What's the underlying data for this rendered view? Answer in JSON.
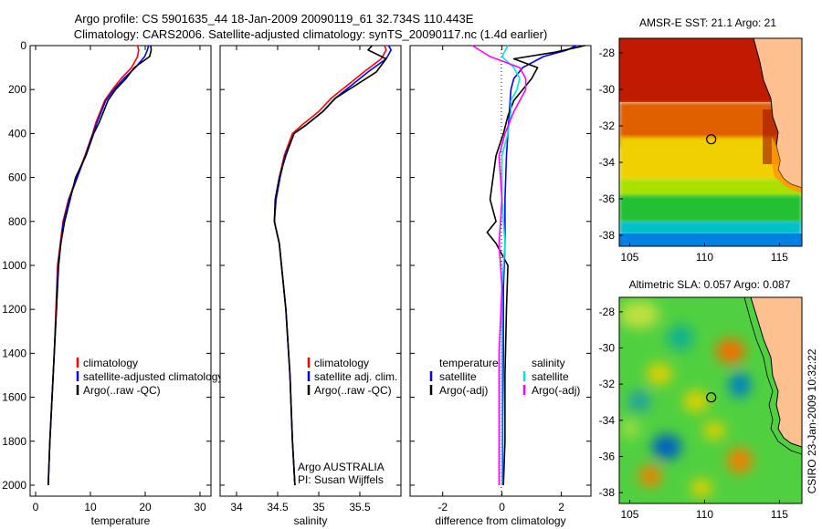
{
  "header": {
    "line1": "Argo profile: CS 5901635_44 18-Jan-2009 20090119_61 32.734S 110.443E",
    "line2": "Climatology: CARS2006. Satellite-adjusted climatology: synTS_20090117.nc (1.4d earlier)"
  },
  "side_label": "CSIRO 23-Jan-2009 10:32:22",
  "colors": {
    "climatology": "#ff0000",
    "satellite": "#0000ff",
    "argo": "#000000",
    "satellite_temp_diff": "#00e5e5",
    "argo_temp_diff": "#ff00ff"
  },
  "chart_data": [
    {
      "id": "temperature",
      "type": "line",
      "xlabel": "temperature",
      "ylabel": "",
      "xlim": [
        -1,
        32
      ],
      "ylim": [
        2050,
        0
      ],
      "y_reversed": true,
      "xticks": [
        0,
        10,
        20,
        30
      ],
      "yticks": [
        0,
        200,
        400,
        600,
        800,
        1000,
        1200,
        1400,
        1600,
        1800,
        2000
      ],
      "legend": [
        "climatology",
        "satellite-adjusted climatology",
        "Argo(..raw -QC)"
      ],
      "series": [
        {
          "name": "climatology",
          "color": "#ff0000",
          "x": [
            18.6,
            18.8,
            18.6,
            17.5,
            15.6,
            14.0,
            12.6,
            11.8,
            11.0,
            10.4,
            9.0,
            7.5,
            6.0,
            5.0,
            4.5,
            4.0,
            3.7,
            3.4,
            3.0,
            2.6,
            2.3
          ],
          "y": [
            0,
            20,
            50,
            100,
            150,
            200,
            250,
            300,
            350,
            400,
            500,
            600,
            700,
            800,
            900,
            1000,
            1200,
            1400,
            1600,
            1800,
            2000
          ]
        },
        {
          "name": "satellite",
          "color": "#0000ff",
          "x": [
            20.6,
            20.4,
            19.9,
            18.2,
            16.1,
            14.3,
            12.8,
            12.0,
            11.2,
            10.5,
            9.1,
            7.6,
            6.1,
            5.1,
            4.6,
            4.1,
            3.8,
            3.4,
            3.0,
            2.6,
            2.3
          ],
          "y": [
            0,
            20,
            50,
            100,
            150,
            200,
            250,
            300,
            350,
            400,
            500,
            600,
            700,
            800,
            900,
            1000,
            1200,
            1400,
            1600,
            1800,
            2000
          ]
        },
        {
          "name": "Argo(..raw -QC)",
          "color": "#000000",
          "x": [
            21.0,
            21.1,
            20.8,
            18.0,
            16.5,
            14.6,
            13.2,
            12.4,
            11.6,
            10.6,
            9.2,
            7.3,
            6.3,
            5.3,
            4.6,
            4.2,
            3.8,
            3.4,
            3.0,
            2.6,
            2.3
          ],
          "y": [
            0,
            20,
            50,
            100,
            150,
            200,
            250,
            300,
            350,
            400,
            500,
            600,
            700,
            800,
            900,
            1000,
            1200,
            1400,
            1600,
            1800,
            2000
          ]
        }
      ]
    },
    {
      "id": "salinity",
      "type": "line",
      "xlabel": "salinity",
      "ylabel": "",
      "xlim": [
        33.8,
        36.0
      ],
      "ylim": [
        2050,
        0
      ],
      "y_reversed": true,
      "xticks": [
        34,
        34.5,
        35,
        35.5
      ],
      "yticks": [
        0,
        200,
        400,
        600,
        800,
        1000,
        1200,
        1400,
        1600,
        1800,
        2000
      ],
      "legend": [
        "climatology",
        "satellite adj. clim.",
        "Argo(..raw -QC)"
      ],
      "annotation": [
        "Argo AUSTRALIA",
        "PI: Susan Wijffels"
      ],
      "series": [
        {
          "name": "climatology",
          "color": "#ff0000",
          "x": [
            35.8,
            35.82,
            35.76,
            35.55,
            35.35,
            35.15,
            35.0,
            34.8,
            34.68,
            34.58,
            34.52,
            34.48,
            34.46,
            34.52,
            34.6,
            34.65,
            34.68,
            34.71
          ],
          "y": [
            0,
            20,
            60,
            120,
            180,
            240,
            300,
            360,
            400,
            500,
            600,
            700,
            800,
            900,
            1200,
            1500,
            1800,
            2000
          ]
        },
        {
          "name": "satellite",
          "color": "#0000ff",
          "x": [
            35.85,
            35.88,
            35.82,
            35.6,
            35.4,
            35.2,
            35.05,
            34.85,
            34.7,
            34.59,
            34.53,
            34.48,
            34.46,
            34.52,
            34.6,
            34.65,
            34.68,
            34.71
          ],
          "y": [
            0,
            20,
            60,
            120,
            180,
            240,
            300,
            360,
            400,
            500,
            600,
            700,
            800,
            900,
            1200,
            1500,
            1800,
            2000
          ]
        },
        {
          "name": "Argo(..raw -QC)",
          "color": "#000000",
          "x": [
            35.65,
            35.6,
            35.82,
            35.7,
            35.45,
            35.2,
            35.05,
            34.85,
            34.7,
            34.6,
            34.52,
            34.47,
            34.46,
            34.52,
            34.6,
            34.65,
            34.68,
            34.71
          ],
          "y": [
            0,
            20,
            60,
            120,
            180,
            240,
            300,
            360,
            400,
            500,
            600,
            700,
            800,
            900,
            1200,
            1500,
            1800,
            2000
          ]
        }
      ]
    },
    {
      "id": "difference",
      "type": "line",
      "xlabel": "difference from climatology",
      "ylabel": "",
      "xlim": [
        -3.1,
        3.0
      ],
      "ylim": [
        2050,
        0
      ],
      "y_reversed": true,
      "xticks": [
        -2,
        0,
        2
      ],
      "yticks": [
        0,
        200,
        400,
        600,
        800,
        1000,
        1200,
        1400,
        1600,
        1800,
        2000
      ],
      "legend_left_title": "temperature",
      "legend_right_title": "salinity",
      "legend_left": [
        "satellite",
        "Argo(-adj)"
      ],
      "legend_right": [
        "satellite",
        "Argo(-adj)"
      ],
      "series": [
        {
          "name": "temperature satellite",
          "color": "#0000ff",
          "x": [
            2.5,
            2.2,
            1.4,
            0.7,
            0.4,
            0.3,
            0.25,
            0.2,
            0.15,
            0.1,
            0.1,
            0.05,
            0.05,
            0.02,
            0.02
          ],
          "y": [
            0,
            20,
            50,
            100,
            150,
            200,
            300,
            400,
            500,
            700,
            900,
            1100,
            1400,
            1700,
            2000
          ]
        },
        {
          "name": "temperature Argo(-adj)",
          "color": "#000000",
          "x": [
            2.8,
            1.8,
            0.4,
            1.2,
            1.0,
            0.7,
            0.4,
            0.2,
            0.05,
            -0.2,
            -0.4,
            -0.2,
            -0.5,
            -0.2,
            0.2,
            0.15,
            0.1,
            0.1,
            0.05
          ],
          "y": [
            0,
            30,
            60,
            100,
            150,
            200,
            250,
            320,
            400,
            500,
            700,
            800,
            850,
            900,
            1000,
            1200,
            1500,
            1800,
            2000
          ]
        },
        {
          "name": "salinity satellite",
          "color": "#00e5e5",
          "x": [
            0.2,
            0.0,
            0.4,
            0.6,
            0.5,
            0.3,
            0.3,
            0.2,
            0.0,
            0.0,
            0.1,
            0.0,
            0.0,
            0.0,
            0.0
          ],
          "y": [
            0,
            50,
            100,
            150,
            200,
            250,
            300,
            400,
            500,
            700,
            900,
            1100,
            1400,
            1700,
            2000
          ]
        },
        {
          "name": "salinity Argo(-adj)",
          "color": "#ff00ff",
          "x": [
            -1.0,
            -0.4,
            0.6,
            0.8,
            0.8,
            0.6,
            0.4,
            0.1,
            -0.1,
            0.0,
            -0.1,
            0.0,
            -0.1,
            -0.1,
            -0.1
          ],
          "y": [
            0,
            50,
            100,
            150,
            200,
            250,
            300,
            400,
            500,
            700,
            900,
            1100,
            1400,
            1700,
            2000
          ]
        }
      ]
    },
    {
      "id": "sst_map",
      "type": "heatmap",
      "title": "AMSR-E SST: 21.1 Argo: 21",
      "xlim": [
        104.3,
        116.5
      ],
      "ylim": [
        -38.6,
        -27.2
      ],
      "xticks": [
        105,
        110,
        115
      ],
      "yticks": [
        -28,
        -30,
        -32,
        -34,
        -36,
        -38
      ],
      "marker": {
        "lon": 110.443,
        "lat": -32.734
      }
    },
    {
      "id": "sla_map",
      "type": "heatmap",
      "title": "Altimetric SLA: 0.057 Argo: 0.087",
      "xlim": [
        104.3,
        116.5
      ],
      "ylim": [
        -38.6,
        -27.2
      ],
      "xticks": [
        105,
        110,
        115
      ],
      "yticks": [
        -28,
        -30,
        -32,
        -34,
        -36,
        -38
      ],
      "marker": {
        "lon": 110.443,
        "lat": -32.734
      }
    }
  ]
}
